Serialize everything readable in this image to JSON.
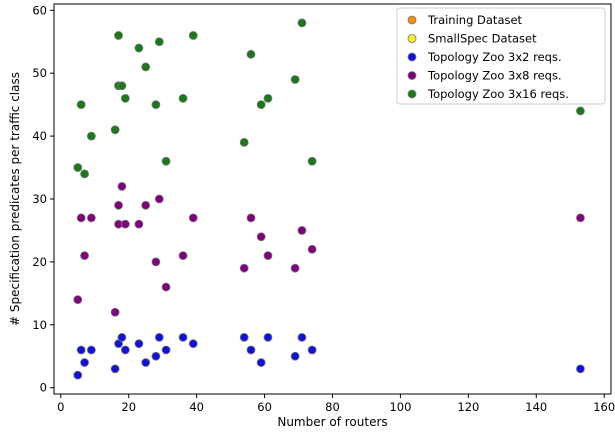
{
  "chart_data": {
    "type": "scatter",
    "xlabel": "Number of routers",
    "ylabel": "# Specification predicates per traffic class",
    "xlim": [
      -2,
      162
    ],
    "ylim": [
      -1,
      61
    ],
    "xticks": [
      0,
      20,
      40,
      60,
      80,
      100,
      120,
      140,
      160
    ],
    "yticks": [
      0,
      10,
      20,
      30,
      40,
      50,
      60
    ],
    "grid": false,
    "legend_position": "top-right",
    "series": [
      {
        "name": "Training Dataset",
        "color": "#f28e1c",
        "points": []
      },
      {
        "name": "SmallSpec Dataset",
        "color": "#ffee22",
        "points": []
      },
      {
        "name": "Topology Zoo 3x2 reqs.",
        "color": "#1111dd",
        "points": [
          [
            5,
            2
          ],
          [
            6,
            6
          ],
          [
            7,
            4
          ],
          [
            9,
            6
          ],
          [
            16,
            3
          ],
          [
            17,
            7
          ],
          [
            18,
            8
          ],
          [
            19,
            6
          ],
          [
            23,
            7
          ],
          [
            25,
            4
          ],
          [
            28,
            5
          ],
          [
            29,
            8
          ],
          [
            31,
            6
          ],
          [
            36,
            8
          ],
          [
            39,
            7
          ],
          [
            54,
            8
          ],
          [
            56,
            6
          ],
          [
            59,
            4
          ],
          [
            61,
            8
          ],
          [
            69,
            5
          ],
          [
            71,
            8
          ],
          [
            74,
            6
          ],
          [
            153,
            3
          ]
        ]
      },
      {
        "name": "Topology Zoo 3x8 reqs.",
        "color": "#800080",
        "points": [
          [
            5,
            14
          ],
          [
            6,
            27
          ],
          [
            7,
            21
          ],
          [
            9,
            27
          ],
          [
            16,
            12
          ],
          [
            17,
            29
          ],
          [
            17,
            26
          ],
          [
            18,
            32
          ],
          [
            19,
            26
          ],
          [
            23,
            26
          ],
          [
            25,
            29
          ],
          [
            28,
            20
          ],
          [
            29,
            30
          ],
          [
            31,
            16
          ],
          [
            36,
            21
          ],
          [
            39,
            27
          ],
          [
            54,
            19
          ],
          [
            56,
            27
          ],
          [
            59,
            24
          ],
          [
            61,
            21
          ],
          [
            69,
            19
          ],
          [
            71,
            25
          ],
          [
            74,
            22
          ],
          [
            153,
            27
          ]
        ]
      },
      {
        "name": "Topology Zoo 3x16 reqs.",
        "color": "#1a7a1a",
        "points": [
          [
            5,
            35
          ],
          [
            6,
            45
          ],
          [
            7,
            34
          ],
          [
            9,
            40
          ],
          [
            16,
            41
          ],
          [
            17,
            56
          ],
          [
            17,
            48
          ],
          [
            18,
            48
          ],
          [
            19,
            46
          ],
          [
            23,
            54
          ],
          [
            25,
            51
          ],
          [
            28,
            45
          ],
          [
            29,
            55
          ],
          [
            31,
            36
          ],
          [
            36,
            46
          ],
          [
            39,
            56
          ],
          [
            54,
            39
          ],
          [
            56,
            53
          ],
          [
            59,
            45
          ],
          [
            61,
            46
          ],
          [
            69,
            49
          ],
          [
            71,
            58
          ],
          [
            74,
            36
          ],
          [
            153,
            44
          ]
        ]
      }
    ]
  }
}
